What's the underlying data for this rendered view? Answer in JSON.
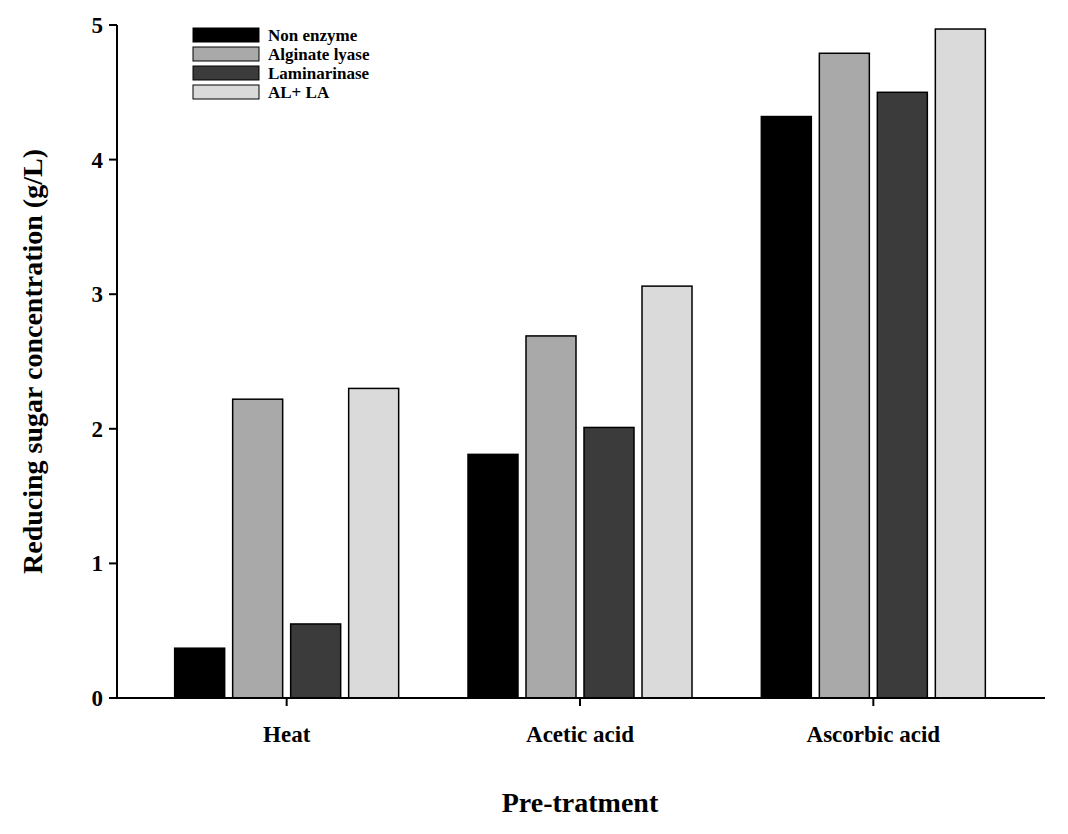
{
  "chart_data": {
    "type": "bar",
    "x_label": "Pre-tratment",
    "y_label": "Reducing sugar concentration (g/L)",
    "categories": [
      "Heat",
      "Acetic acid",
      "Ascorbic acid"
    ],
    "series": [
      {
        "name": "Non enzyme",
        "color": "#000000",
        "values": [
          0.37,
          1.81,
          4.32
        ]
      },
      {
        "name": "Alginate lyase",
        "color": "#a9a9a9",
        "values": [
          2.22,
          2.69,
          4.79
        ]
      },
      {
        "name": "Laminarinase",
        "color": "#3b3b3b",
        "values": [
          0.55,
          2.01,
          4.5
        ]
      },
      {
        "name": "AL+ LA",
        "color": "#dadada",
        "values": [
          2.3,
          3.06,
          4.97
        ]
      }
    ],
    "ylim": [
      0,
      5
    ],
    "yticks": [
      0,
      1,
      2,
      3,
      4,
      5
    ],
    "grid": false,
    "legend": "upper left"
  }
}
